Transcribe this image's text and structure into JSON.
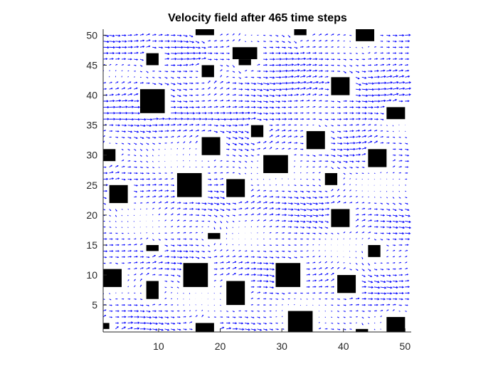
{
  "chart_data": {
    "type": "quiver",
    "title": "Velocity field after 465 time steps",
    "xlabel": "",
    "ylabel": "",
    "xlim": [
      1,
      51
    ],
    "ylim": [
      0.5,
      51
    ],
    "xticks": [
      10,
      20,
      30,
      40,
      50
    ],
    "yticks": [
      5,
      10,
      15,
      20,
      25,
      30,
      35,
      40,
      45,
      50
    ],
    "grid_spacing": 1,
    "arrow_color": "#0000ff",
    "obstacle_color": "#000000",
    "dominant_flow": "left to right (positive x direction)",
    "obstacles": [
      {
        "x": [
          16,
          19
        ],
        "y": [
          50,
          51
        ]
      },
      {
        "x": [
          32,
          34
        ],
        "y": [
          50,
          51
        ]
      },
      {
        "x": [
          42,
          45
        ],
        "y": [
          49,
          51
        ]
      },
      {
        "x": [
          22,
          26
        ],
        "y": [
          46,
          48
        ]
      },
      {
        "x": [
          23,
          25
        ],
        "y": [
          45,
          46
        ]
      },
      {
        "x": [
          8,
          10
        ],
        "y": [
          45,
          47
        ]
      },
      {
        "x": [
          17,
          19
        ],
        "y": [
          43,
          45
        ]
      },
      {
        "x": [
          38,
          41
        ],
        "y": [
          40,
          43
        ]
      },
      {
        "x": [
          7,
          11
        ],
        "y": [
          37,
          41
        ]
      },
      {
        "x": [
          47,
          50
        ],
        "y": [
          36,
          38
        ]
      },
      {
        "x": [
          25,
          27
        ],
        "y": [
          33,
          35
        ]
      },
      {
        "x": [
          17,
          20
        ],
        "y": [
          30,
          33
        ]
      },
      {
        "x": [
          34,
          37
        ],
        "y": [
          31,
          34
        ]
      },
      {
        "x": [
          1,
          3
        ],
        "y": [
          29,
          31
        ]
      },
      {
        "x": [
          44,
          47
        ],
        "y": [
          28,
          31
        ]
      },
      {
        "x": [
          27,
          31
        ],
        "y": [
          27,
          30
        ]
      },
      {
        "x": [
          13,
          17
        ],
        "y": [
          23,
          27
        ]
      },
      {
        "x": [
          21,
          24
        ],
        "y": [
          23,
          26
        ]
      },
      {
        "x": [
          37,
          39
        ],
        "y": [
          25,
          27
        ]
      },
      {
        "x": [
          2,
          5
        ],
        "y": [
          22,
          25
        ]
      },
      {
        "x": [
          38,
          41
        ],
        "y": [
          18,
          21
        ]
      },
      {
        "x": [
          18,
          20
        ],
        "y": [
          16,
          17
        ]
      },
      {
        "x": [
          8,
          10
        ],
        "y": [
          14,
          15
        ]
      },
      {
        "x": [
          44,
          46
        ],
        "y": [
          13,
          15
        ]
      },
      {
        "x": [
          1,
          4
        ],
        "y": [
          8,
          11
        ]
      },
      {
        "x": [
          14,
          18
        ],
        "y": [
          8,
          12
        ]
      },
      {
        "x": [
          29,
          33
        ],
        "y": [
          8,
          12
        ]
      },
      {
        "x": [
          39,
          42
        ],
        "y": [
          7,
          10
        ]
      },
      {
        "x": [
          8,
          10
        ],
        "y": [
          6,
          9
        ]
      },
      {
        "x": [
          21,
          24
        ],
        "y": [
          5,
          9
        ]
      },
      {
        "x": [
          31,
          35
        ],
        "y": [
          0.5,
          4
        ]
      },
      {
        "x": [
          16,
          19
        ],
        "y": [
          0.5,
          2
        ]
      },
      {
        "x": [
          42,
          44
        ],
        "y": [
          0.5,
          1
        ]
      },
      {
        "x": [
          47,
          50
        ],
        "y": [
          0.5,
          3
        ]
      },
      {
        "x": [
          1,
          2
        ],
        "y": [
          1,
          2
        ]
      }
    ]
  }
}
